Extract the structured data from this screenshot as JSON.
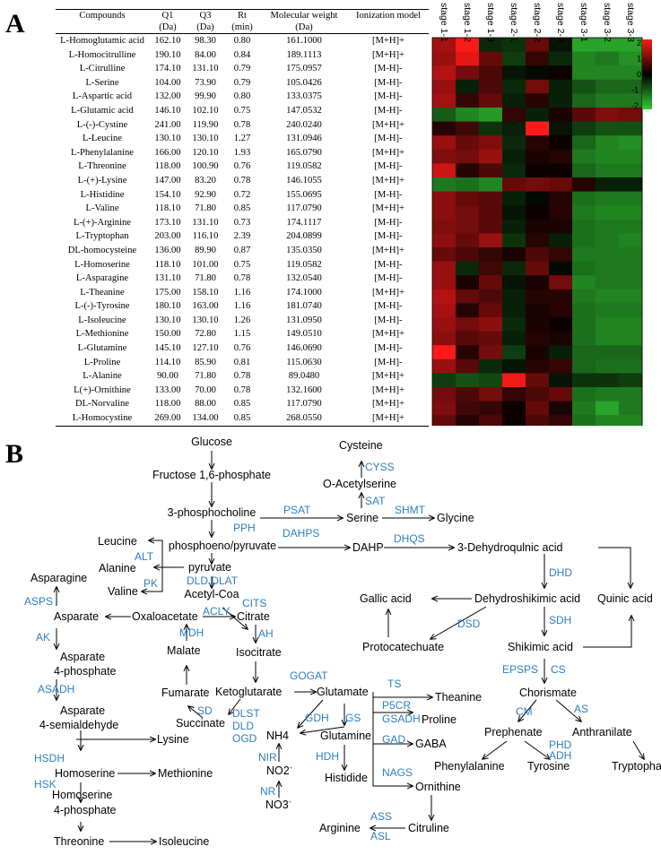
{
  "panelA": {
    "letter": "A",
    "table": {
      "headers": [
        "Compounds",
        "Q1",
        "Q3",
        "Rt",
        "Molecular weight",
        "Ionization model"
      ],
      "subheaders": [
        "",
        "(Da)",
        "(Da)",
        "(min)",
        "(Da)",
        ""
      ],
      "rows": [
        [
          "L-Homoglutamic acid",
          "162.10",
          "98.30",
          "0.80",
          "161.1000",
          "[M+H]+"
        ],
        [
          "L-Homocitrulline",
          "190.10",
          "84.00",
          "0.84",
          "189.1113",
          "[M+H]+"
        ],
        [
          "L-Citrulline",
          "174.10",
          "131.10",
          "0.79",
          "175.0957",
          "[M-H]-"
        ],
        [
          "L-Serine",
          "104.00",
          "73.90",
          "0.79",
          "105.0426",
          "[M-H]-"
        ],
        [
          "L-Aspartic acid",
          "132.00",
          "99.90",
          "0.80",
          "133.0375",
          "[M-H]-"
        ],
        [
          "L-Glutamic acid",
          "146.10",
          "102.10",
          "0.75",
          "147.0532",
          "[M-H]-"
        ],
        [
          "L-(-)-Cystine",
          "241.00",
          "119.90",
          "0.78",
          "240.0240",
          "[M+H]+"
        ],
        [
          "L-Leucine",
          "130.10",
          "130.10",
          "1.27",
          "131.0946",
          "[M-H]-"
        ],
        [
          "L-Phenylalanine",
          "166.00",
          "120.10",
          "1.93",
          "165.0790",
          "[M+H]+"
        ],
        [
          "L-Threonine",
          "118.00",
          "100.90",
          "0.76",
          "119.0582",
          "[M-H]-"
        ],
        [
          "L-(+)-Lysine",
          "147.00",
          "83.20",
          "0.78",
          "146.1055",
          "[M+H]+"
        ],
        [
          "L-Histidine",
          "154.10",
          "92.90",
          "0.72",
          "155.0695",
          "[M-H]-"
        ],
        [
          "L-Valine",
          "118.10",
          "71.80",
          "0.85",
          "117.0790",
          "[M+H]+"
        ],
        [
          "L-(+)-Arginine",
          "173.10",
          "131.10",
          "0.73",
          "174.1117",
          "[M-H]-"
        ],
        [
          "L-Tryptophan",
          "203.00",
          "116.10",
          "2.39",
          "204.0899",
          "[M-H]-"
        ],
        [
          "DL-homocysteine",
          "136.00",
          "89.90",
          "0.87",
          "135.0350",
          "[M+H]+"
        ],
        [
          "L-Homoserine",
          "118.10",
          "101.00",
          "0.75",
          "119.0582",
          "[M-H]-"
        ],
        [
          "L-Asparagine",
          "131.10",
          "71.80",
          "0.78",
          "132.0540",
          "[M-H]-"
        ],
        [
          "L-Theanine",
          "175.00",
          "158.10",
          "1.16",
          "174.1000",
          "[M+H]+"
        ],
        [
          "L-(-)-Tyrosine",
          "180.10",
          "163.00",
          "1.16",
          "181.0740",
          "[M-H]-"
        ],
        [
          "L-Isoleucine",
          "130.10",
          "130.10",
          "1.26",
          "131.0950",
          "[M-H]-"
        ],
        [
          "L-Methionine",
          "150.00",
          "72.80",
          "1.15",
          "149.0510",
          "[M+H]+"
        ],
        [
          "L-Glutamine",
          "145.10",
          "127.10",
          "0.76",
          "146.0690",
          "[M-H]-"
        ],
        [
          "L-Proline",
          "114.10",
          "85.90",
          "0.81",
          "115.0630",
          "[M-H]-"
        ],
        [
          "L-Alanine",
          "90.00",
          "71.80",
          "0.78",
          "89.0480",
          "[M+H]+"
        ],
        [
          "L(+)-Ornithine",
          "133.00",
          "70.00",
          "0.78",
          "132.1600",
          "[M+H]+"
        ],
        [
          "DL-Norvaline",
          "118.00",
          "88.00",
          "0.85",
          "117.0790",
          "[M+H]+"
        ],
        [
          "L-Homocystine",
          "269.00",
          "134.00",
          "0.85",
          "268.0550",
          "[M+H]+"
        ]
      ]
    },
    "heatmap": {
      "stages": [
        "stage 1-1",
        "stage 1-2",
        "stage 1-3",
        "stage 2-1",
        "stage 2-2",
        "stage 2-3",
        "stage 3-1",
        "stage 3-2",
        "stage 3-3"
      ],
      "values": [
        [
          1.3,
          2.2,
          -0.4,
          -0.5,
          0.8,
          -0.2,
          -1.6,
          -1.6,
          -1.6
        ],
        [
          1.2,
          1.8,
          0.8,
          -0.6,
          0.4,
          -0.4,
          -1.3,
          -1.2,
          -1.4
        ],
        [
          1.4,
          0.9,
          0.6,
          -0.2,
          -0.1,
          0.1,
          -1.3,
          -1.3,
          -1.3
        ],
        [
          1.2,
          -0.3,
          0.6,
          -0.4,
          0.9,
          -0.3,
          -0.8,
          -1.0,
          -1.0
        ],
        [
          1.3,
          0.4,
          0.8,
          -0.3,
          0.3,
          -0.3,
          -1.0,
          -1.2,
          -1.2
        ],
        [
          -0.9,
          -1.3,
          -1.5,
          0.4,
          -0.3,
          0.2,
          0.7,
          1.0,
          0.9
        ],
        [
          0.3,
          0.5,
          -0.5,
          -0.3,
          2.5,
          -0.2,
          -0.6,
          -0.8,
          -0.8
        ],
        [
          1.2,
          0.8,
          1.0,
          -0.4,
          0.3,
          0.1,
          -1.0,
          -1.3,
          -1.4
        ],
        [
          1.0,
          0.9,
          1.2,
          -0.3,
          0.2,
          0.3,
          -1.2,
          -1.3,
          -1.3
        ],
        [
          1.6,
          0.3,
          0.6,
          -0.4,
          0.1,
          0.1,
          -1.0,
          -1.2,
          -1.2
        ],
        [
          -1.2,
          -1.1,
          -1.3,
          0.8,
          0.9,
          0.8,
          0.3,
          -0.3,
          -0.3
        ],
        [
          1.1,
          0.8,
          0.7,
          -0.3,
          -0.1,
          0.3,
          -1.1,
          -1.2,
          -1.2
        ],
        [
          1.1,
          0.9,
          0.7,
          -0.2,
          0.1,
          0.3,
          -1.2,
          -1.3,
          -1.3
        ],
        [
          1.0,
          0.9,
          0.7,
          -0.3,
          0.2,
          0.2,
          -1.1,
          -1.2,
          -1.2
        ],
        [
          1.1,
          0.8,
          1.2,
          -0.5,
          0.3,
          -0.3,
          -1.1,
          -1.2,
          -1.3
        ],
        [
          0.8,
          0.6,
          0.4,
          0.2,
          0.6,
          0.4,
          -1.2,
          -1.2,
          -1.2
        ],
        [
          1.2,
          -0.4,
          0.5,
          -0.4,
          0.8,
          -0.1,
          -1.1,
          -1.2,
          -1.2
        ],
        [
          1.2,
          0.2,
          0.8,
          -0.2,
          0.2,
          0.9,
          -1.3,
          -1.2,
          -1.2
        ],
        [
          1.4,
          0.8,
          0.6,
          -0.3,
          0.3,
          0.3,
          -1.2,
          -1.3,
          -1.3
        ],
        [
          1.3,
          0.3,
          0.8,
          -0.3,
          0.2,
          0.3,
          -1.1,
          -1.2,
          -1.2
        ],
        [
          1.2,
          0.9,
          1.1,
          -0.4,
          0.2,
          0.1,
          -1.1,
          -1.3,
          -1.3
        ],
        [
          1.1,
          0.7,
          0.8,
          -0.3,
          0.3,
          0.2,
          -1.1,
          -1.3,
          -1.3
        ],
        [
          2.1,
          0.3,
          0.9,
          -0.6,
          0.2,
          -0.3,
          -1.0,
          -1.0,
          -1.0
        ],
        [
          1.2,
          0.7,
          -0.4,
          -0.2,
          0.3,
          0.4,
          -1.0,
          -1.1,
          -1.1
        ],
        [
          -0.6,
          -0.8,
          -0.7,
          1.9,
          0.8,
          -0.2,
          -0.5,
          -0.5,
          -0.6
        ],
        [
          0.9,
          0.6,
          0.9,
          0.4,
          0.6,
          0.8,
          -1.1,
          -1.2,
          -1.2
        ],
        [
          1.0,
          0.5,
          0.4,
          0.1,
          0.8,
          0.2,
          -1.2,
          -1.6,
          -1.2
        ],
        [
          0.8,
          0.3,
          0.6,
          0.1,
          0.6,
          0.4,
          -1.1,
          -1.3,
          -1.3
        ]
      ],
      "colorbar_ticks": [
        "2",
        "1",
        "0",
        "-1",
        "-2"
      ],
      "colors": {
        "high": "#ff1a1a",
        "mid": "#000000",
        "low": "#33cc33"
      }
    }
  },
  "panelB": {
    "letter": "B",
    "nodes": {
      "glucose": "Glucose",
      "f16p": "Fructose 1,6-phosphate",
      "phosphocholine": "3-phosphocholine",
      "pep": "phosphoeno/pyruvate",
      "pyruvate": "pyruvate",
      "acetylcoa": "Acetyl-Coa",
      "leucine": "Leucine",
      "alanine": "Alanine",
      "valine": "Valine",
      "asparagine": "Asparagine",
      "asparate": "Asparate",
      "oxaloacetate": "Oxaloacetate",
      "citrate": "Citrate",
      "isocitrate": "Isocitrate",
      "malate": "Malate",
      "fumarate": "Fumarate",
      "succinate": "Succinate",
      "ketoglutarate": "Ketoglutarate",
      "glutamate": "Glutamate",
      "asp4p_a": "Asparate",
      "asp4p_b": "4-phosphate",
      "asp4s_a": "Asparate",
      "asp4s_b": "4-semialdehyde",
      "lysine": "Lysine",
      "homoserine": "Homoserine",
      "methionine": "Methionine",
      "hs4p_a": "Homoserine",
      "hs4p_b": "4-phosphate",
      "threonine": "Threonine",
      "isoleucine": "Isoleucine",
      "cysteine": "Cysteine",
      "oacetylserine": "O-Acetylserine",
      "serine": "Serine",
      "glycine": "Glycine",
      "dahp": "DAHP",
      "dehydroquinic": "3-Dehydroqulnic  acid",
      "quinic": "Quinic acid",
      "gallic": "Gallic acid",
      "dehydroshikimic": "Dehydroshikimic acid",
      "protocatechuate": "Protocatechuate",
      "shikimic": "Shikimic acid",
      "chorismate": "Chorismate",
      "prephenate": "Prephenate",
      "anthranilate": "Anthranilate",
      "phenylalanine": "Phenylalanine",
      "tyrosine": "Tyrosine",
      "tryptophan": "Tryptophan",
      "theanine": "Theanine",
      "proline": "Proline",
      "gaba": "GABA",
      "glutamine": "Glutamine",
      "histidine": "Histidide",
      "ornithine": "Ornithine",
      "citruline": "Citruline",
      "arginine": "Arginine",
      "nh4": "NH4",
      "no2": "NO2",
      "no3": "NO3",
      "no2_sup": "-",
      "no3_sup": "-"
    },
    "enzymes": {
      "cyss": "CYSS",
      "sat": "SAT",
      "shmt": "SHMT",
      "psat": "PSAT",
      "pph": "PPH",
      "dahps": "DAHPS",
      "dhqs": "DHQS",
      "dhd": "DHD",
      "sdh": "SDH",
      "dsd": "DSD",
      "epsps": "EPSPS",
      "cs": "CS",
      "cm": "CM",
      "as": "AS",
      "phd": "PHD",
      "adh": "ADH",
      "alt": "ALT",
      "pk": "PK",
      "dld_dlat": "DLD,DLAT",
      "cits": "CITS",
      "acly": "ACLY",
      "asps": "ASPS",
      "ak": "AK",
      "mdh": "MDH",
      "ah": "AH",
      "asadh": "ASADH",
      "sd": "SD",
      "dlst": "DLST",
      "dld": "DLD",
      "ogd": "OGD",
      "gogat": "GOGAT",
      "ts": "TS",
      "p5cr": "P5CR",
      "gsadh": "GSADH",
      "gdh": "GDH",
      "gs": "GS",
      "gad": "GAD",
      "hsdh": "HSDH",
      "hsk": "HSK",
      "nir": "NIR",
      "nr": "NR",
      "hdh": "HDH",
      "nags": "NAGS",
      "ass": "ASS",
      "asl": "ASL"
    }
  }
}
